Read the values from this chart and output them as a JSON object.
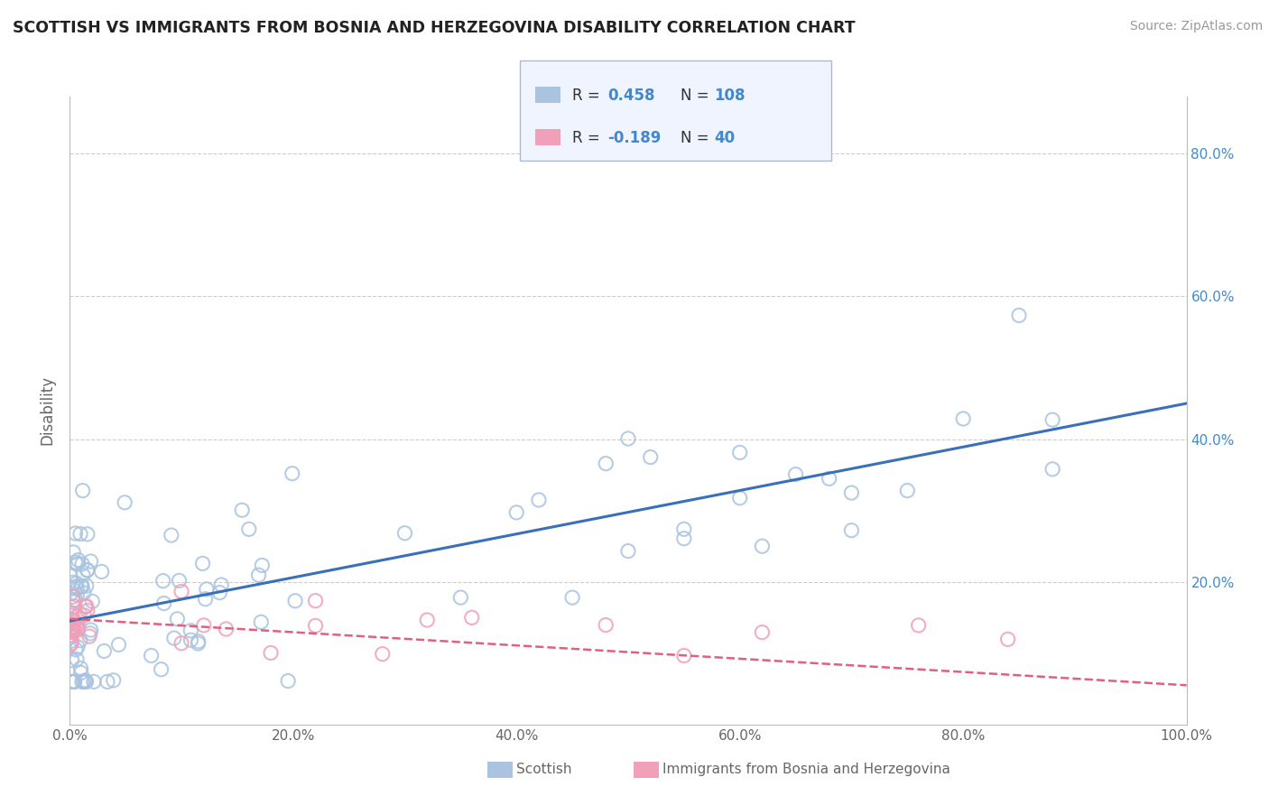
{
  "title": "SCOTTISH VS IMMIGRANTS FROM BOSNIA AND HERZEGOVINA DISABILITY CORRELATION CHART",
  "source": "Source: ZipAtlas.com",
  "ylabel": "Disability",
  "xlim": [
    0.0,
    1.0
  ],
  "ylim": [
    0.0,
    0.88
  ],
  "yticks": [
    0.0,
    0.2,
    0.4,
    0.6,
    0.8
  ],
  "ytick_labels_right": [
    "",
    "20.0%",
    "40.0%",
    "60.0%",
    "80.0%"
  ],
  "xticks": [
    0.0,
    0.2,
    0.4,
    0.6,
    0.8,
    1.0
  ],
  "xtick_labels": [
    "0.0%",
    "20.0%",
    "40.0%",
    "60.0%",
    "80.0%",
    "100.0%"
  ],
  "scottish_R": 0.458,
  "scottish_N": 108,
  "bosnia_R": -0.189,
  "bosnia_N": 40,
  "scottish_color": "#aac4e0",
  "bosnia_color": "#f0a0b8",
  "scottish_line_color": "#3a6fba",
  "bosnia_line_color": "#e06080",
  "background_color": "#ffffff",
  "grid_color": "#cccccc",
  "right_tick_color": "#4488cc",
  "legend_box_color": "#f0f4ff",
  "legend_border_color": "#aabbcc",
  "legend_text_dark": "#333333",
  "legend_text_blue": "#4488cc"
}
